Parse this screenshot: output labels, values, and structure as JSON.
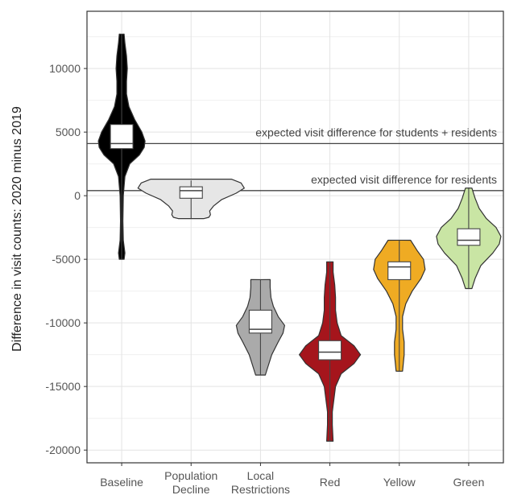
{
  "chart_data": {
    "type": "violin",
    "title": "",
    "xlabel": "",
    "ylabel": "Difference in visit counts: 2020 minus 2019",
    "ylim": [
      -21000,
      14500
    ],
    "yticks": [
      10000,
      5000,
      0,
      -5000,
      -10000,
      -15000,
      -20000
    ],
    "ytick_labels": [
      "10000",
      "5000",
      "0",
      "-5000",
      "-10000",
      "-15000",
      "-20000"
    ],
    "grid": true,
    "categories": [
      {
        "label": [
          "Baseline"
        ],
        "color": "#000000",
        "min": -5000,
        "q1": 3700,
        "median": 4100,
        "q3": 5600,
        "max": 12700,
        "density": [
          [
            -5000,
            3
          ],
          [
            -4500,
            4
          ],
          [
            -3500,
            2
          ],
          [
            -2000,
            1.5
          ],
          [
            0,
            2
          ],
          [
            1500,
            4
          ],
          [
            2500,
            10
          ],
          [
            3200,
            22
          ],
          [
            3800,
            28
          ],
          [
            4300,
            29
          ],
          [
            5000,
            25
          ],
          [
            6000,
            16
          ],
          [
            7000,
            9
          ],
          [
            8000,
            6
          ],
          [
            9000,
            6
          ],
          [
            10000,
            7
          ],
          [
            11000,
            6
          ],
          [
            12000,
            4
          ],
          [
            12700,
            3
          ]
        ]
      },
      {
        "label": [
          "Population",
          "Decline"
        ],
        "color": "#e6e6e6",
        "min": -1800,
        "q1": -200,
        "median": 400,
        "q3": 700,
        "max": 1200,
        "density": [
          [
            -1800,
            16
          ],
          [
            -1700,
            22
          ],
          [
            -1500,
            24
          ],
          [
            -1200,
            23
          ],
          [
            -800,
            28
          ],
          [
            -300,
            38
          ],
          [
            200,
            56
          ],
          [
            600,
            66
          ],
          [
            1000,
            62
          ],
          [
            1300,
            50
          ]
        ]
      },
      {
        "label": [
          "Local",
          "Restrictions"
        ],
        "color": "#aaaaaa",
        "min": -14100,
        "q1": -10800,
        "median": -10500,
        "q3": -9000,
        "max": -6600,
        "density": [
          [
            -14100,
            6
          ],
          [
            -13500,
            9
          ],
          [
            -12500,
            14
          ],
          [
            -11500,
            22
          ],
          [
            -10800,
            28
          ],
          [
            -10200,
            30
          ],
          [
            -9500,
            22
          ],
          [
            -8700,
            16
          ],
          [
            -8000,
            13
          ],
          [
            -7200,
            12
          ],
          [
            -6600,
            12
          ]
        ]
      },
      {
        "label": [
          "Red"
        ],
        "color": "#a5151c",
        "min": -19300,
        "q1": -12900,
        "median": -12300,
        "q3": -11400,
        "max": -5200,
        "density": [
          [
            -19300,
            4
          ],
          [
            -18000,
            3
          ],
          [
            -17000,
            3
          ],
          [
            -16000,
            5
          ],
          [
            -15000,
            7
          ],
          [
            -14000,
            14
          ],
          [
            -13200,
            30
          ],
          [
            -12500,
            38
          ],
          [
            -11800,
            30
          ],
          [
            -11000,
            14
          ],
          [
            -10000,
            9
          ],
          [
            -9000,
            7
          ],
          [
            -8000,
            7
          ],
          [
            -7000,
            6
          ],
          [
            -6000,
            4
          ],
          [
            -5200,
            4
          ]
        ]
      },
      {
        "label": [
          "Yellow"
        ],
        "color": "#efab23",
        "min": -13800,
        "q1": -6600,
        "median": -5600,
        "q3": -5200,
        "max": -3500,
        "density": [
          [
            -13800,
            4
          ],
          [
            -12500,
            6
          ],
          [
            -11500,
            6
          ],
          [
            -10500,
            4
          ],
          [
            -9500,
            4
          ],
          [
            -8500,
            8
          ],
          [
            -7500,
            16
          ],
          [
            -6500,
            27
          ],
          [
            -5800,
            32
          ],
          [
            -5000,
            30
          ],
          [
            -4300,
            22
          ],
          [
            -3500,
            14
          ]
        ]
      },
      {
        "label": [
          "Green"
        ],
        "color": "#c9e5a4",
        "min": -7300,
        "q1": -3900,
        "median": -3500,
        "q3": -2600,
        "max": 600,
        "density": [
          [
            -7300,
            4
          ],
          [
            -6500,
            8
          ],
          [
            -5500,
            15
          ],
          [
            -4500,
            30
          ],
          [
            -3800,
            38
          ],
          [
            -3200,
            40
          ],
          [
            -2500,
            34
          ],
          [
            -1800,
            22
          ],
          [
            -1000,
            13
          ],
          [
            -200,
            8
          ],
          [
            600,
            4
          ]
        ]
      }
    ],
    "reference_lines": [
      {
        "y": 4100,
        "label": "expected visit difference for students + residents"
      },
      {
        "y": 400,
        "label": "expected visit difference for residents"
      }
    ]
  }
}
